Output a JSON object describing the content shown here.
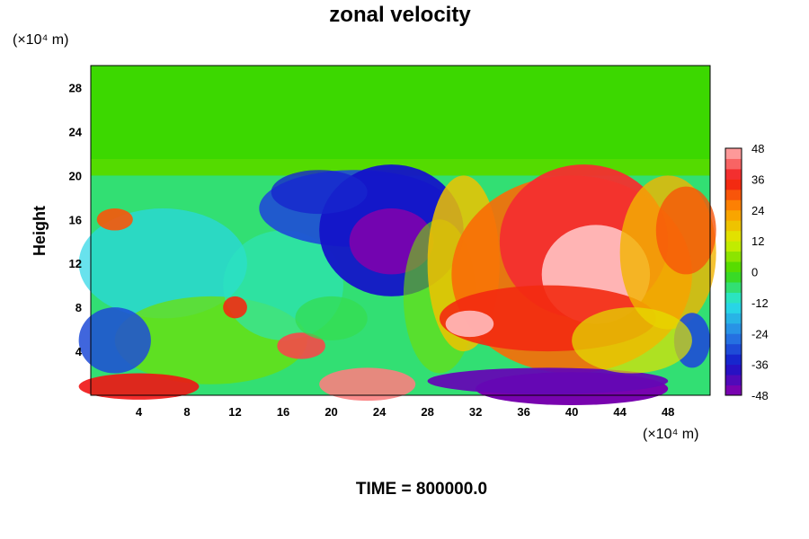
{
  "chart_data": {
    "type": "heatmap",
    "title": "zonal velocity",
    "xlabel": "",
    "ylabel": "Height",
    "x_unit_label": "(×10⁴ m)",
    "y_unit_label": "(×10⁴ m)",
    "xlim": [
      0,
      51.5
    ],
    "ylim": [
      0,
      30
    ],
    "x_ticks": [
      4,
      8,
      12,
      16,
      20,
      24,
      28,
      32,
      36,
      40,
      44,
      48
    ],
    "y_ticks": [
      4,
      8,
      12,
      16,
      20,
      24,
      28
    ],
    "colorbar": {
      "range": [
        -48,
        48
      ],
      "step": 4,
      "tick_labels": [
        "48",
        "36",
        "24",
        "12",
        "0",
        "-12",
        "-24",
        "-36",
        "-48"
      ]
    },
    "footer": "TIME = 800000.0"
  },
  "colors": {
    "background": "#ffffff",
    "axis": "#000000"
  }
}
